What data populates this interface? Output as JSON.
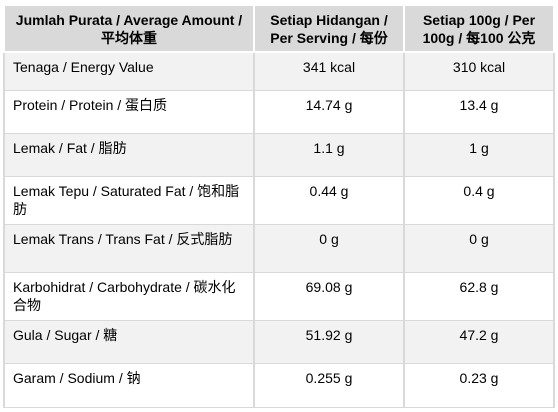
{
  "header": {
    "col1": "Jumlah Purata / Average Amount / 平均体重",
    "col2": "Setiap Hidangan / Per Serving / 每份",
    "col3": "Setiap 100g / Per 100g / 每100 公克"
  },
  "rows": [
    {
      "label": "Tenaga / Energy Value",
      "serving": "341 kcal",
      "per100": "310 kcal"
    },
    {
      "label": "Protein / Protein / 蛋白质",
      "serving": "14.74 g",
      "per100": "13.4 g"
    },
    {
      "label": "Lemak / Fat / 脂肪",
      "serving": "1.1 g",
      "per100": "1 g"
    },
    {
      "label": "Lemak Tepu / Saturated Fat / 饱和脂肪",
      "serving": "0.44 g",
      "per100": "0.4 g"
    },
    {
      "label": "Lemak Trans / Trans Fat / 反式脂肪",
      "serving": "0 g",
      "per100": "0 g"
    },
    {
      "label": "Karbohidrat / Carbohydrate / 碳水化合物",
      "serving": "69.08 g",
      "per100": "62.8 g"
    },
    {
      "label": "Gula / Sugar / 糖",
      "serving": "51.92 g",
      "per100": "47.2 g"
    },
    {
      "label": "Garam / Sodium / 钠",
      "serving": "0.255 g",
      "per100": "0.23 g"
    }
  ]
}
